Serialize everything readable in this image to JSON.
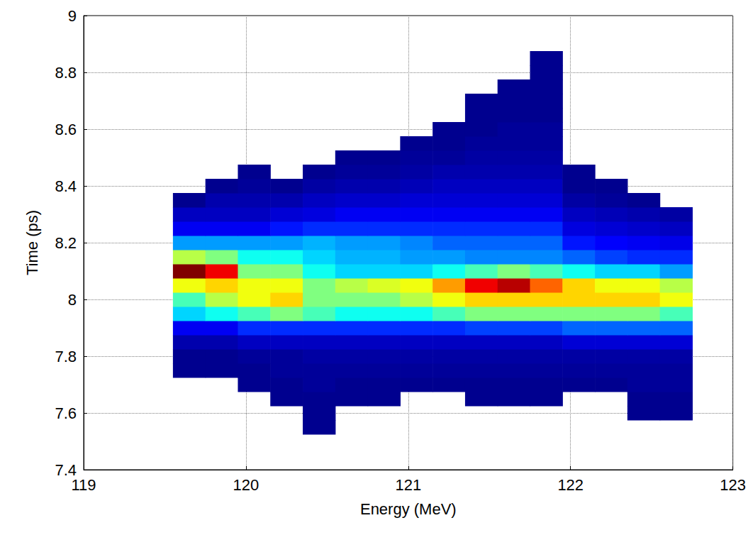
{
  "chart_data": {
    "type": "heatmap",
    "xlabel": "Energy (MeV)",
    "ylabel": "Time (ps)",
    "xlim": [
      119,
      123
    ],
    "ylim": [
      7.4,
      9
    ],
    "xticks": [
      119,
      120,
      121,
      122,
      123
    ],
    "yticks": [
      7.4,
      7.6,
      7.8,
      8,
      8.2,
      8.4,
      8.6,
      8.8,
      9
    ],
    "grid": true,
    "x": [
      119.65,
      119.85,
      120.05,
      120.25,
      120.45,
      120.65,
      120.85,
      121.05,
      121.25,
      121.45,
      121.65,
      121.85,
      122.05,
      122.25,
      122.45,
      122.65
    ],
    "y": [
      7.55,
      7.6,
      7.65,
      7.7,
      7.75,
      7.8,
      7.85,
      7.9,
      7.95,
      8.0,
      8.05,
      8.1,
      8.15,
      8.2,
      8.25,
      8.3,
      8.35,
      8.4,
      8.45,
      8.5,
      8.55,
      8.6,
      8.65,
      8.7,
      8.75,
      8.8,
      8.85
    ],
    "values": [
      [
        null,
        null,
        null,
        null,
        0.5,
        null,
        null,
        null,
        null,
        null,
        null,
        null,
        null,
        null,
        null,
        null
      ],
      [
        null,
        null,
        null,
        null,
        0.5,
        null,
        null,
        null,
        null,
        null,
        null,
        null,
        null,
        null,
        0.5,
        0.5
      ],
      [
        null,
        null,
        null,
        0.5,
        0.5,
        0.5,
        0.5,
        null,
        null,
        0.5,
        0.5,
        0.5,
        null,
        null,
        0.5,
        0.5
      ],
      [
        null,
        null,
        0.5,
        0.5,
        0.6,
        0.5,
        0.5,
        0.5,
        0.5,
        0.5,
        0.5,
        0.5,
        0.5,
        0.5,
        0.6,
        0.6
      ],
      [
        0.5,
        0.5,
        0.5,
        0.6,
        0.6,
        0.6,
        0.6,
        0.6,
        0.6,
        0.6,
        0.6,
        0.6,
        0.6,
        0.6,
        0.6,
        0.6
      ],
      [
        0.5,
        0.5,
        0.6,
        0.6,
        0.7,
        0.7,
        0.7,
        0.7,
        0.7,
        0.7,
        0.7,
        0.7,
        0.7,
        0.7,
        0.7,
        0.7
      ],
      [
        0.8,
        0.8,
        1,
        1,
        1,
        1,
        1,
        1,
        1,
        1,
        1,
        1,
        1.2,
        1.2,
        1.2,
        1.2
      ],
      [
        1.5,
        1.5,
        2,
        2,
        2,
        2,
        2,
        2,
        2,
        2.2,
        2.2,
        2.2,
        2.5,
        2.5,
        2.5,
        2.5
      ],
      [
        3.5,
        4,
        4.5,
        5,
        4.5,
        4,
        4,
        4,
        4.5,
        5,
        5,
        5,
        5,
        5,
        5,
        4.5
      ],
      [
        4.5,
        5.5,
        6,
        6.5,
        5,
        5,
        5,
        5.5,
        6,
        6.5,
        6.5,
        6.5,
        6.5,
        6.5,
        6.5,
        6
      ],
      [
        6,
        6.5,
        6,
        6,
        5,
        5.5,
        5.8,
        6,
        7,
        8.5,
        9,
        7.5,
        6.5,
        6,
        6,
        5.5
      ],
      [
        9.5,
        8.5,
        5,
        5,
        4,
        3.5,
        3.5,
        3.5,
        4,
        4.5,
        5,
        4.5,
        4,
        3.5,
        3.5,
        3
      ],
      [
        5.5,
        5,
        4,
        4,
        3.5,
        3.2,
        3.2,
        3,
        3,
        2.8,
        2.8,
        2.8,
        2.5,
        2.2,
        2,
        2
      ],
      [
        3,
        3,
        3,
        3,
        3.2,
        3,
        3,
        2.8,
        2.5,
        2.5,
        2.5,
        2.5,
        1.8,
        1.6,
        1.5,
        1.4
      ],
      [
        1.5,
        1.5,
        1.5,
        1.8,
        2,
        2,
        2,
        2,
        2,
        2,
        2,
        2,
        1.3,
        1.2,
        1.1,
        1
      ],
      [
        1,
        1,
        1,
        1.2,
        1.3,
        1.5,
        1.5,
        1.5,
        1.5,
        1.5,
        1.5,
        1.5,
        1,
        0.9,
        0.8,
        0.7
      ],
      [
        0.5,
        0.8,
        0.8,
        0.8,
        1,
        1.1,
        1.1,
        1.2,
        1.2,
        1.2,
        1.2,
        1.2,
        0.7,
        0.6,
        0.5,
        null
      ],
      [
        null,
        0.5,
        0.6,
        0.5,
        0.7,
        0.8,
        0.8,
        0.9,
        1,
        1,
        1,
        1,
        0.5,
        0.5,
        null,
        null
      ],
      [
        null,
        null,
        0.5,
        null,
        0.5,
        0.6,
        0.6,
        0.7,
        0.8,
        0.8,
        0.8,
        0.8,
        0.5,
        null,
        null,
        null
      ],
      [
        null,
        null,
        null,
        null,
        null,
        0.5,
        0.5,
        0.6,
        0.6,
        0.7,
        0.7,
        0.7,
        null,
        null,
        null,
        null
      ],
      [
        null,
        null,
        null,
        null,
        null,
        null,
        null,
        0.5,
        0.5,
        0.6,
        0.6,
        0.6,
        null,
        null,
        null,
        null
      ],
      [
        null,
        null,
        null,
        null,
        null,
        null,
        null,
        null,
        0.5,
        0.5,
        0.6,
        0.6,
        null,
        null,
        null,
        null
      ],
      [
        null,
        null,
        null,
        null,
        null,
        null,
        null,
        null,
        null,
        0.5,
        0.5,
        0.5,
        null,
        null,
        null,
        null
      ],
      [
        null,
        null,
        null,
        null,
        null,
        null,
        null,
        null,
        null,
        0.5,
        0.5,
        0.5,
        null,
        null,
        null,
        null
      ],
      [
        null,
        null,
        null,
        null,
        null,
        null,
        null,
        null,
        null,
        null,
        0.5,
        0.5,
        null,
        null,
        null,
        null
      ],
      [
        null,
        null,
        null,
        null,
        null,
        null,
        null,
        null,
        null,
        null,
        null,
        0.5,
        null,
        null,
        null,
        null
      ],
      [
        null,
        null,
        null,
        null,
        null,
        null,
        null,
        null,
        null,
        null,
        null,
        0.5,
        null,
        null,
        null,
        null
      ]
    ]
  }
}
